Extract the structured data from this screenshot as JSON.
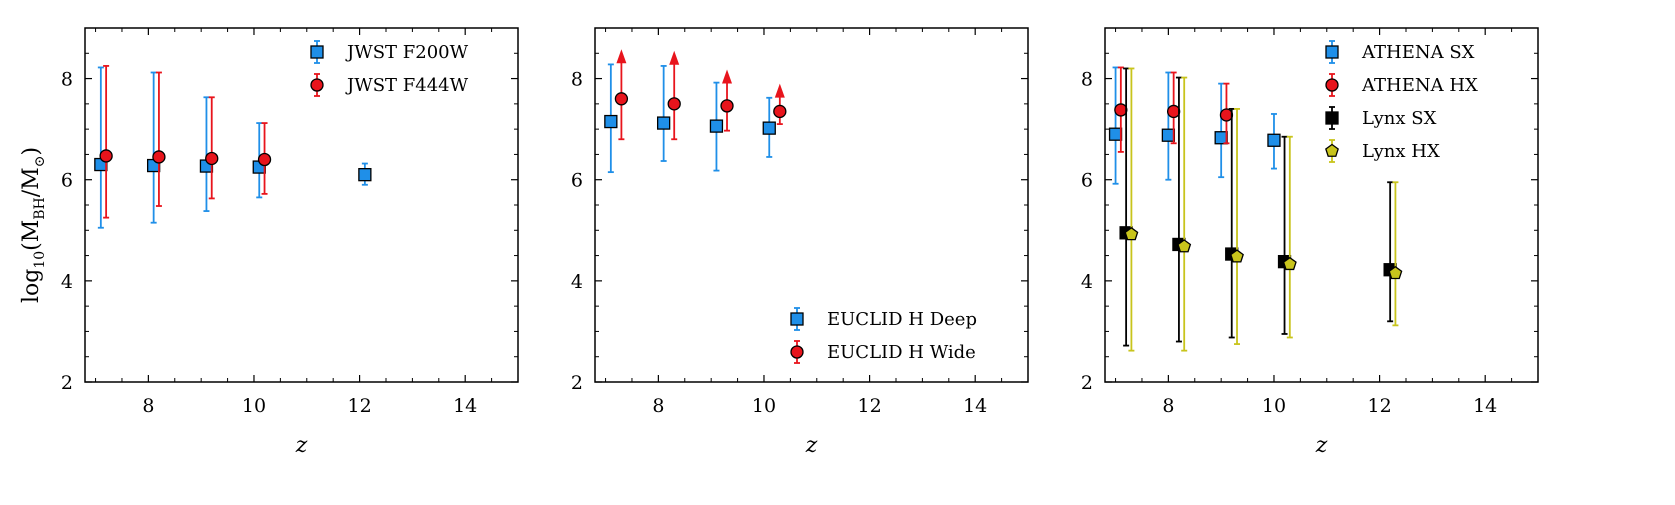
{
  "chart_data": [
    {
      "type": "scatter",
      "xlabel": "z",
      "ylabel": "log₁₀(Mʙʜ/M⊙)",
      "ylabel_parts": {
        "log": "log",
        "sub10": "10",
        "open": "(M",
        "bh": "BH",
        "slash": "/M",
        "sun": "⊙",
        "close": ")"
      },
      "xlim": [
        6.8,
        15
      ],
      "ylim": [
        2,
        9
      ],
      "xticks": [
        "8",
        "10",
        "12",
        "14"
      ],
      "yticks": [
        "2",
        "4",
        "6",
        "8"
      ],
      "legend_position": "top-right",
      "series": [
        {
          "name": "JWST F200W",
          "marker": "square",
          "color": "#1f8fe8",
          "points": [
            {
              "x": 7.1,
              "y": 6.3,
              "low": 5.05,
              "high": 8.22
            },
            {
              "x": 8.1,
              "y": 6.28,
              "low": 5.15,
              "high": 8.12
            },
            {
              "x": 9.1,
              "y": 6.27,
              "low": 5.38,
              "high": 7.63
            },
            {
              "x": 10.1,
              "y": 6.25,
              "low": 5.65,
              "high": 7.12
            },
            {
              "x": 12.1,
              "y": 6.1,
              "low": 5.9,
              "high": 6.32
            }
          ]
        },
        {
          "name": "JWST F444W",
          "marker": "circle",
          "color": "#e8141c",
          "points": [
            {
              "x": 7.2,
              "y": 6.47,
              "low": 5.25,
              "high": 8.25
            },
            {
              "x": 8.2,
              "y": 6.45,
              "low": 5.48,
              "high": 8.12
            },
            {
              "x": 9.2,
              "y": 6.42,
              "low": 5.63,
              "high": 7.63
            },
            {
              "x": 10.2,
              "y": 6.4,
              "low": 5.72,
              "high": 7.12
            }
          ]
        }
      ]
    },
    {
      "type": "scatter",
      "xlabel": "z",
      "xlim": [
        6.8,
        15
      ],
      "ylim": [
        2,
        9
      ],
      "xticks": [
        "8",
        "10",
        "12",
        "14"
      ],
      "yticks": [
        "2",
        "4",
        "6",
        "8"
      ],
      "legend_position": "bottom-right",
      "series": [
        {
          "name": "EUCLID H Deep",
          "marker": "square",
          "color": "#1f8fe8",
          "points": [
            {
              "x": 7.1,
              "y": 7.15,
              "low": 6.15,
              "high": 8.28
            },
            {
              "x": 8.1,
              "y": 7.12,
              "low": 6.37,
              "high": 8.25
            },
            {
              "x": 9.1,
              "y": 7.06,
              "low": 6.18,
              "high": 7.92
            },
            {
              "x": 10.1,
              "y": 7.02,
              "low": 6.45,
              "high": 7.62
            }
          ]
        },
        {
          "name": "EUCLID H Wide",
          "marker": "circle",
          "color": "#e8141c",
          "lower_limit": true,
          "points": [
            {
              "x": 7.3,
              "y": 7.6,
              "low": 6.8,
              "arrow_to": 8.58
            },
            {
              "x": 8.3,
              "y": 7.5,
              "low": 6.8,
              "arrow_to": 8.55
            },
            {
              "x": 9.3,
              "y": 7.46,
              "low": 6.97,
              "arrow_to": 8.18
            },
            {
              "x": 10.3,
              "y": 7.35,
              "low": 7.1,
              "arrow_to": 7.9
            }
          ]
        }
      ]
    },
    {
      "type": "scatter",
      "xlabel": "z",
      "xlim": [
        6.8,
        15
      ],
      "ylim": [
        2,
        9
      ],
      "xticks": [
        "8",
        "10",
        "12",
        "14"
      ],
      "yticks": [
        "2",
        "4",
        "6",
        "8"
      ],
      "legend_position": "top-right",
      "series": [
        {
          "name": "ATHENA SX",
          "marker": "square",
          "color": "#1f8fe8",
          "points": [
            {
              "x": 7.0,
              "y": 6.9,
              "low": 5.92,
              "high": 8.22
            },
            {
              "x": 8.0,
              "y": 6.88,
              "low": 6.0,
              "high": 8.12
            },
            {
              "x": 9.0,
              "y": 6.83,
              "low": 6.05,
              "high": 7.9
            },
            {
              "x": 10.0,
              "y": 6.78,
              "low": 6.22,
              "high": 7.3
            }
          ]
        },
        {
          "name": "ATHENA HX",
          "marker": "circle",
          "color": "#e8141c",
          "points": [
            {
              "x": 7.1,
              "y": 7.38,
              "low": 6.55,
              "high": 8.22
            },
            {
              "x": 8.1,
              "y": 7.35,
              "low": 6.72,
              "high": 8.12
            },
            {
              "x": 9.1,
              "y": 7.28,
              "low": 6.72,
              "high": 7.9
            }
          ]
        },
        {
          "name": "Lynx SX",
          "marker": "square",
          "color": "#000000",
          "points": [
            {
              "x": 7.2,
              "y": 4.95,
              "low": 2.72,
              "high": 8.2
            },
            {
              "x": 8.2,
              "y": 4.72,
              "low": 2.8,
              "high": 8.02
            },
            {
              "x": 9.2,
              "y": 4.53,
              "low": 2.88,
              "high": 7.4
            },
            {
              "x": 10.2,
              "y": 4.38,
              "low": 2.95,
              "high": 6.85
            },
            {
              "x": 12.2,
              "y": 4.22,
              "low": 3.2,
              "high": 5.95
            }
          ]
        },
        {
          "name": "Lynx HX",
          "marker": "pentagon",
          "color": "#c8c41c",
          "points": [
            {
              "x": 7.3,
              "y": 4.92,
              "low": 2.62,
              "high": 8.2
            },
            {
              "x": 8.3,
              "y": 4.68,
              "low": 2.62,
              "high": 8.02
            },
            {
              "x": 9.3,
              "y": 4.48,
              "low": 2.75,
              "high": 7.4
            },
            {
              "x": 10.3,
              "y": 4.33,
              "low": 2.88,
              "high": 6.85
            },
            {
              "x": 12.3,
              "y": 4.15,
              "low": 3.12,
              "high": 5.95
            }
          ]
        }
      ]
    }
  ]
}
